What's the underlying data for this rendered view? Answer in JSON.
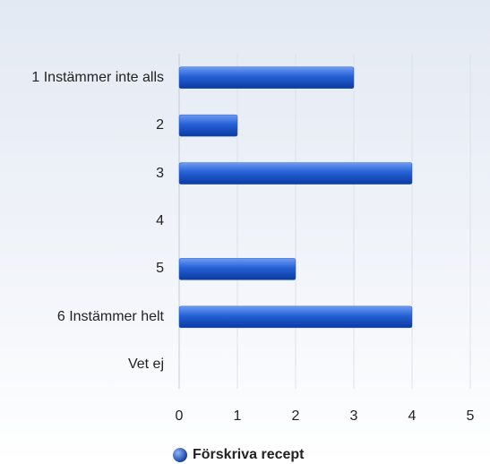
{
  "chart_data": {
    "type": "bar",
    "orientation": "horizontal",
    "categories": [
      "1 Instämmer inte alls",
      "2",
      "3",
      "4",
      "5",
      "6 Instämmer helt",
      "Vet ej"
    ],
    "series": [
      {
        "name": "Förskriva recept",
        "color": "#1f5fd1",
        "values": [
          3,
          1,
          4,
          0,
          2,
          4,
          0
        ]
      }
    ],
    "xlim": [
      0,
      5
    ],
    "xticks": [
      0,
      1,
      2,
      3,
      4,
      5
    ],
    "grid": true,
    "legend": "bottom"
  }
}
